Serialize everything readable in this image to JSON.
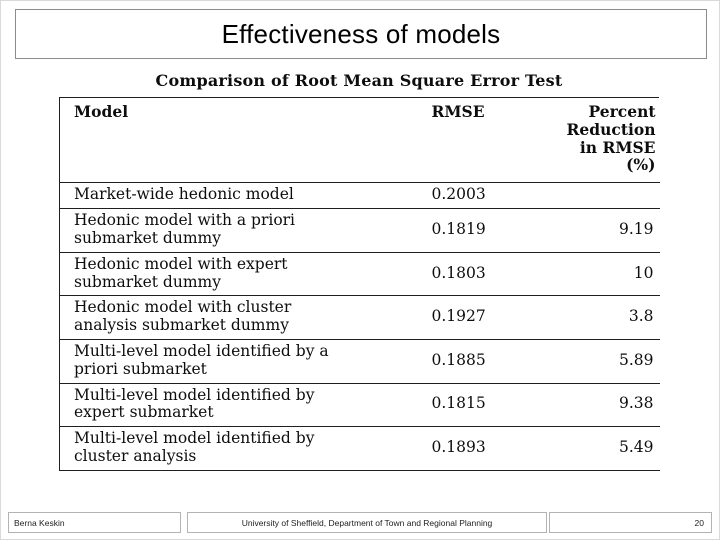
{
  "slide": {
    "title": "Effectiveness of models"
  },
  "table": {
    "caption": "Comparison of Root Mean Square Error Test",
    "columns": [
      "Model",
      "RMSE",
      "Percent Reduction in RMSE (%)"
    ],
    "rows": [
      {
        "model": "Market-wide hedonic model",
        "rmse": "0.2003",
        "percent_reduction": ""
      },
      {
        "model": "Hedonic model with a priori submarket dummy",
        "rmse": "0.1819",
        "percent_reduction": "9.19"
      },
      {
        "model": "Hedonic model with expert submarket dummy",
        "rmse": "0.1803",
        "percent_reduction": "10"
      },
      {
        "model": "Hedonic model with cluster analysis submarket dummy",
        "rmse": "0.1927",
        "percent_reduction": "3.8"
      },
      {
        "model": "Multi-level model identified by a priori submarket",
        "rmse": "0.1885",
        "percent_reduction": "5.89"
      },
      {
        "model": "Multi-level model identified by expert submarket",
        "rmse": "0.1815",
        "percent_reduction": "9.38"
      },
      {
        "model": "Multi-level model identified by cluster analysis",
        "rmse": "0.1893",
        "percent_reduction": "5.49"
      }
    ]
  },
  "footer": {
    "author": "Berna Keskin",
    "affiliation": "University of Sheffield, Department of Town and Regional Planning",
    "page_number": "20"
  },
  "colors": {
    "table_rule": "#1f1f1f",
    "title_border": "#8c8c8c",
    "footer_border": "#b3b3b3",
    "background": "#ffffff"
  }
}
